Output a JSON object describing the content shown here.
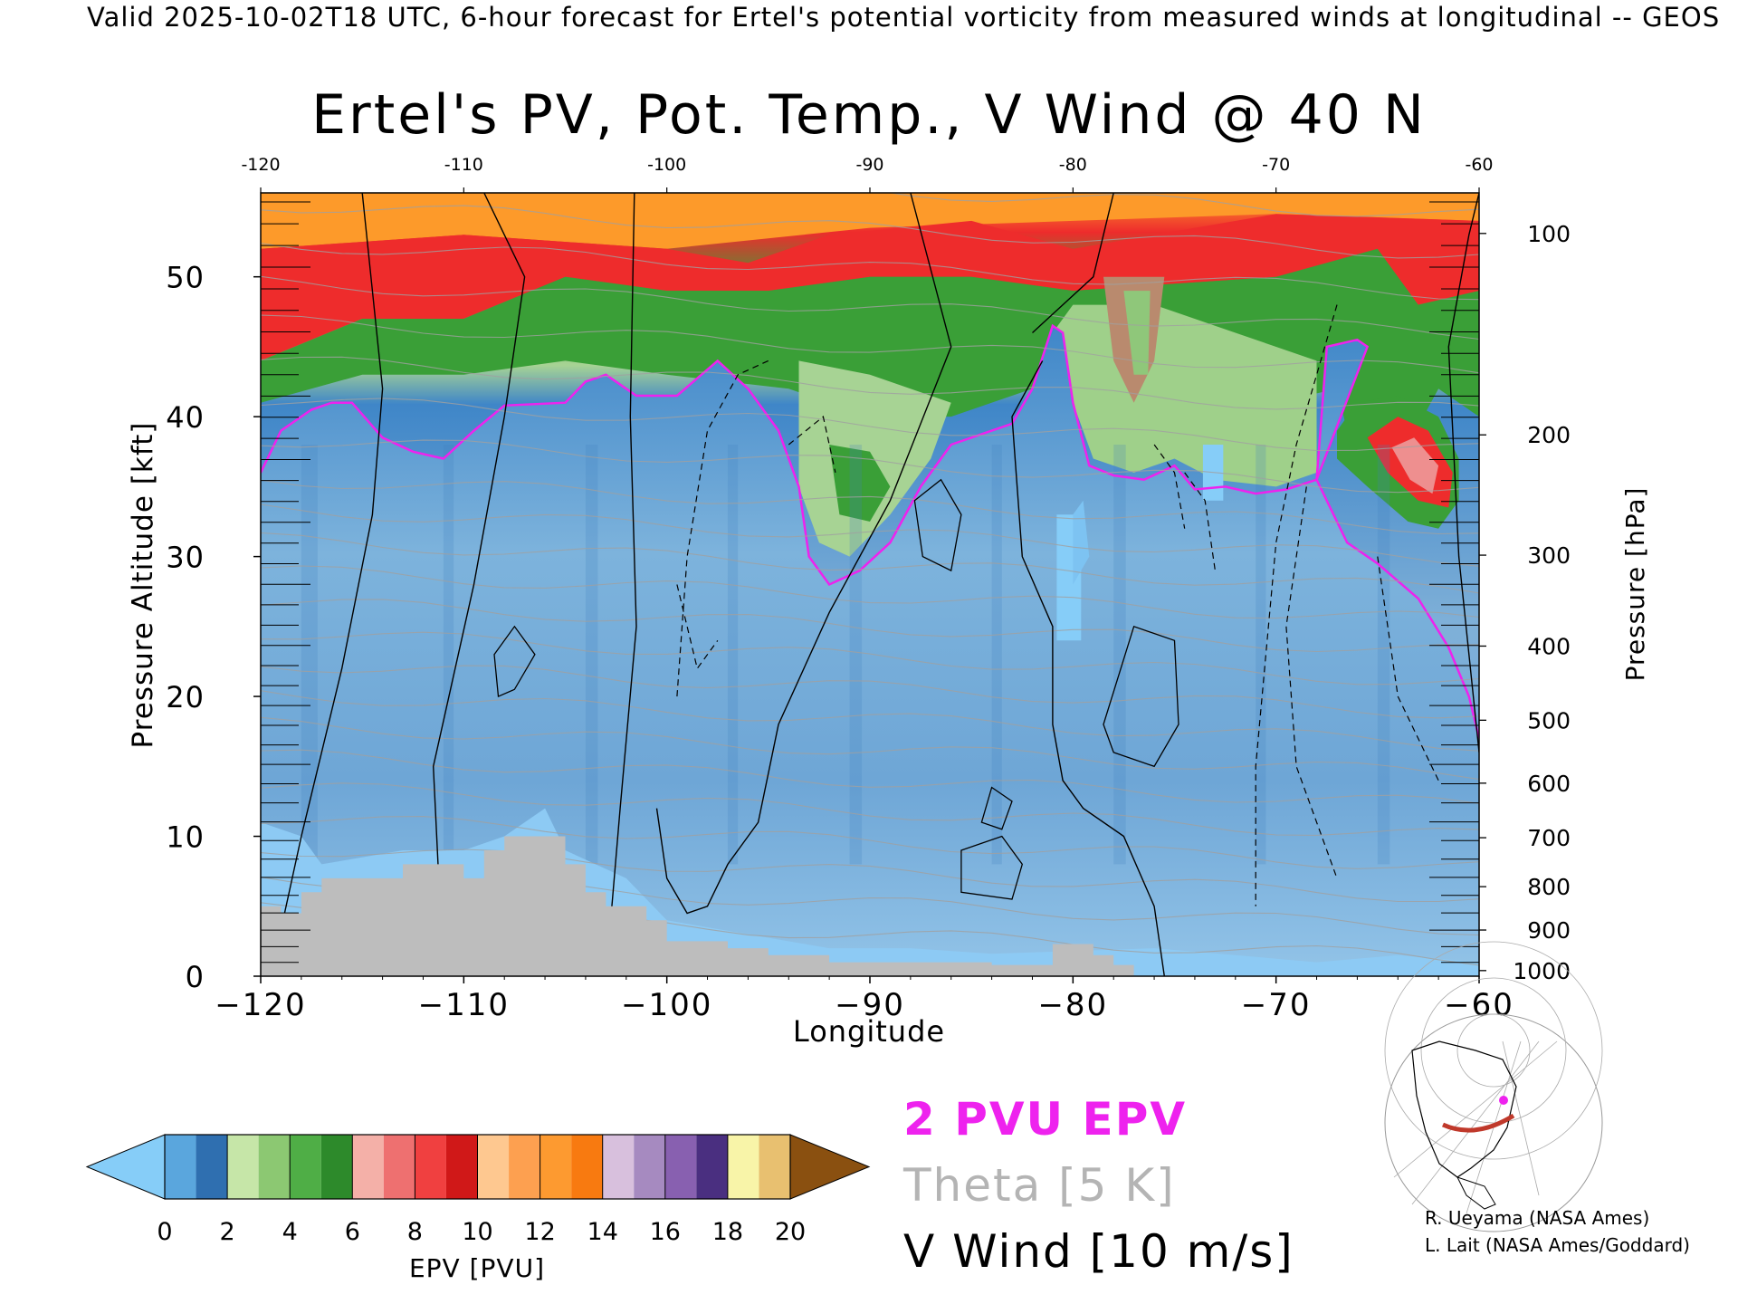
{
  "header": {
    "banner": "Valid 2025-10-02T18 UTC, 6-hour forecast for Ertel's potential vorticity from measured winds at longitudinal -- GEOS"
  },
  "chart_data": {
    "type": "heatmap",
    "title": "Ertel's PV, Pot. Temp., V Wind @ 40 N",
    "xlabel": "Longitude",
    "ylabel": "Pressure Altitude [kft]",
    "y2label": "Pressure [hPa]",
    "xlim": [
      -120,
      -60
    ],
    "ylim": [
      0,
      56
    ],
    "x_ticks": [
      -120,
      -110,
      -100,
      -90,
      -80,
      -70,
      -60
    ],
    "x_tick_labels": [
      "−120",
      "−110",
      "−100",
      "−90",
      "−80",
      "−70",
      "−60"
    ],
    "x_top_tick_labels": [
      "-120",
      "-110",
      "-100",
      "-90",
      "-80",
      "-70",
      "-60"
    ],
    "y_ticks": [
      0,
      10,
      20,
      30,
      40,
      50
    ],
    "y2_ticks": [
      {
        "p": 1000,
        "kft": 0.4
      },
      {
        "p": 900,
        "kft": 3.3
      },
      {
        "p": 800,
        "kft": 6.4
      },
      {
        "p": 700,
        "kft": 9.9
      },
      {
        "p": 600,
        "kft": 13.8
      },
      {
        "p": 500,
        "kft": 18.3
      },
      {
        "p": 400,
        "kft": 23.6
      },
      {
        "p": 300,
        "kft": 30.1
      },
      {
        "p": 200,
        "kft": 38.7
      },
      {
        "p": 100,
        "kft": 53.1
      }
    ],
    "grid": false,
    "colorbar": {
      "label": "EPV [PVU]",
      "ticks": [
        "0",
        "2",
        "4",
        "6",
        "8",
        "10",
        "12",
        "14",
        "16",
        "18",
        "20"
      ],
      "colors": [
        "#86cdf8",
        "#5b9fd3",
        "#a7d394",
        "#3a9f37",
        "#ee8f8f",
        "#ee2c2c",
        "#fdb468",
        "#fd8a22",
        "#c0a6cf",
        "#6a4a99",
        "#f3ec8e",
        "#8a5010"
      ]
    },
    "legend": [
      {
        "text": "2 PVU EPV",
        "color": "#ee22ee"
      },
      {
        "text": "Theta [5 K]",
        "color": "#b4b4b4"
      },
      {
        "text": "V Wind [10 m/s]",
        "color": "#000000"
      }
    ],
    "pv2_boundary_kft": [
      [
        -120,
        36
      ],
      [
        -119,
        39
      ],
      [
        -117.5,
        40.5
      ],
      [
        -116.5,
        41
      ],
      [
        -115.5,
        41
      ],
      [
        -114,
        38.5
      ],
      [
        -112.5,
        37.5
      ],
      [
        -111,
        37
      ],
      [
        -109.5,
        39
      ],
      [
        -108,
        40.8
      ],
      [
        -105,
        41
      ],
      [
        -104,
        42.5
      ],
      [
        -103,
        43
      ],
      [
        -101.5,
        41.5
      ],
      [
        -99.5,
        41.5
      ],
      [
        -97.5,
        44
      ],
      [
        -96,
        42
      ],
      [
        -94.5,
        39
      ],
      [
        -93.5,
        35
      ],
      [
        -93,
        30
      ],
      [
        -92,
        28
      ],
      [
        -90.5,
        29
      ],
      [
        -89,
        31
      ],
      [
        -87.5,
        35
      ],
      [
        -86,
        38
      ],
      [
        -84,
        39
      ],
      [
        -83,
        39.5
      ],
      [
        -82,
        42
      ],
      [
        -81,
        46.5
      ],
      [
        -80.5,
        46
      ],
      [
        -80,
        41
      ],
      [
        -79.2,
        36.5
      ],
      [
        -78,
        35.8
      ],
      [
        -76.5,
        35.5
      ],
      [
        -75,
        36.5
      ],
      [
        -74,
        34.8
      ],
      [
        -72.5,
        35
      ],
      [
        -71,
        34.5
      ],
      [
        -69.5,
        34.8
      ],
      [
        -68,
        35.5
      ],
      [
        -67.5,
        45
      ],
      [
        -66,
        45.5
      ],
      [
        -65.5,
        45
      ],
      [
        -68,
        35.5
      ],
      [
        -66.5,
        31
      ],
      [
        -65,
        29.5
      ],
      [
        -63,
        27
      ],
      [
        -61.5,
        23.5
      ],
      [
        -60.5,
        20
      ],
      [
        -60,
        17
      ]
    ],
    "footer_credits": [
      "R. Ueyama (NASA Ames)",
      "L. Lait (NASA Ames/Goddard)"
    ]
  }
}
